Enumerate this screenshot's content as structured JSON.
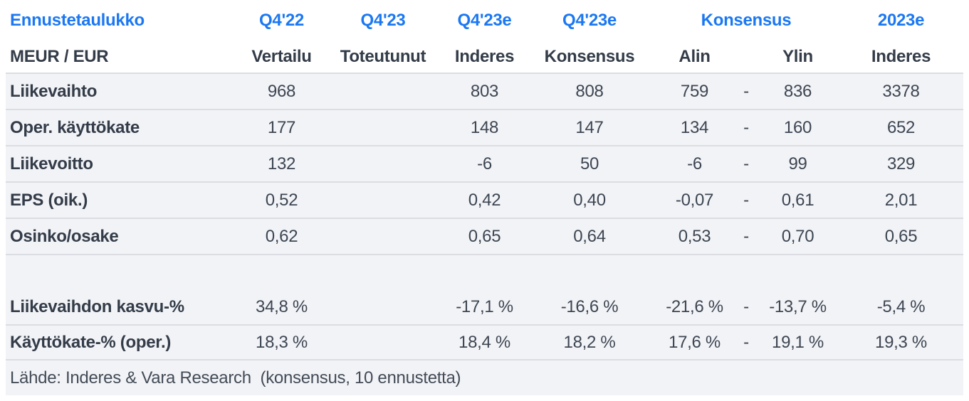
{
  "colors": {
    "accent_blue": "#1b78f2",
    "row_bg": "#f2f3f7",
    "divider": "#dcdde2",
    "label_text": "#333c48",
    "value_text": "#3d4652",
    "footer_text": "#434c57",
    "page_bg": "#ffffff"
  },
  "header": {
    "title": "Ennustetaulukko",
    "unit_label": "MEUR / EUR",
    "group_headers": [
      "Q4'22",
      "Q4'23",
      "Q4'23e",
      "Q4'23e",
      "Konsensus",
      "2023e"
    ],
    "sub_headers": [
      "Vertailu",
      "Toteutunut",
      "Inderes",
      "Konsensus",
      "Alin",
      "Ylin",
      "Inderes"
    ]
  },
  "table": {
    "rows": [
      {
        "type": "data",
        "label": "Liikevaihto",
        "values": [
          "968",
          "",
          "803",
          "808",
          "759",
          "-",
          "836",
          "3378"
        ]
      },
      {
        "type": "data",
        "label": "Oper. käyttökate",
        "values": [
          "177",
          "",
          "148",
          "147",
          "134",
          "-",
          "160",
          "652"
        ]
      },
      {
        "type": "data",
        "label": "Liikevoitto",
        "values": [
          "132",
          "",
          "-6",
          "50",
          "-6",
          "-",
          "99",
          "329"
        ]
      },
      {
        "type": "data",
        "label": "EPS (oik.)",
        "values": [
          "0,52",
          "",
          "0,42",
          "0,40",
          "-0,07",
          "-",
          "0,61",
          "2,01"
        ]
      },
      {
        "type": "data",
        "label": "Osinko/osake",
        "values": [
          "0,62",
          "",
          "0,65",
          "0,64",
          "0,53",
          "-",
          "0,70",
          "0,65"
        ]
      },
      {
        "type": "spacer",
        "label": "",
        "values": [
          "",
          "",
          "",
          "",
          "",
          "",
          "",
          ""
        ]
      },
      {
        "type": "data",
        "label": "Liikevaihdon kasvu-%",
        "values": [
          "34,8 %",
          "",
          "-17,1 %",
          "-16,6 %",
          "-21,6 %",
          "-",
          "-13,7 %",
          "-5,4 %"
        ],
        "no_top_divider": true
      },
      {
        "type": "data",
        "label": "Käyttökate-% (oper.)",
        "values": [
          "18,3 %",
          "",
          "18,4 %",
          "18,2 %",
          "17,6 %",
          "-",
          "19,1 %",
          "19,3 %"
        ]
      }
    ]
  },
  "footer": {
    "source": "Lähde: Inderes & Vara Research  (konsensus, 10 ennustetta)"
  },
  "chart_data": {
    "type": "table",
    "title": "Ennustetaulukko",
    "unit": "MEUR / EUR",
    "columns": [
      "Q4'22 Vertailu",
      "Q4'23 Toteutunut",
      "Q4'23e Inderes",
      "Q4'23e Konsensus",
      "Konsensus Alin",
      "Konsensus Ylin",
      "2023e Inderes"
    ],
    "rows": [
      {
        "label": "Liikevaihto",
        "values": [
          968,
          null,
          803,
          808,
          759,
          836,
          3378
        ]
      },
      {
        "label": "Oper. käyttökate",
        "values": [
          177,
          null,
          148,
          147,
          134,
          160,
          652
        ]
      },
      {
        "label": "Liikevoitto",
        "values": [
          132,
          null,
          -6,
          50,
          -6,
          99,
          329
        ]
      },
      {
        "label": "EPS (oik.)",
        "values": [
          0.52,
          null,
          0.42,
          0.4,
          -0.07,
          0.61,
          2.01
        ]
      },
      {
        "label": "Osinko/osake",
        "values": [
          0.62,
          null,
          0.65,
          0.64,
          0.53,
          0.7,
          0.65
        ]
      },
      {
        "label": "Liikevaihdon kasvu-%",
        "values": [
          34.8,
          null,
          -17.1,
          -16.6,
          -21.6,
          -13.7,
          -5.4
        ],
        "unit": "%"
      },
      {
        "label": "Käyttökate-% (oper.)",
        "values": [
          18.3,
          null,
          18.4,
          18.2,
          17.6,
          19.1,
          19.3
        ],
        "unit": "%"
      }
    ],
    "source": "Lähde: Inderes & Vara Research (konsensus, 10 ennustetta)"
  }
}
